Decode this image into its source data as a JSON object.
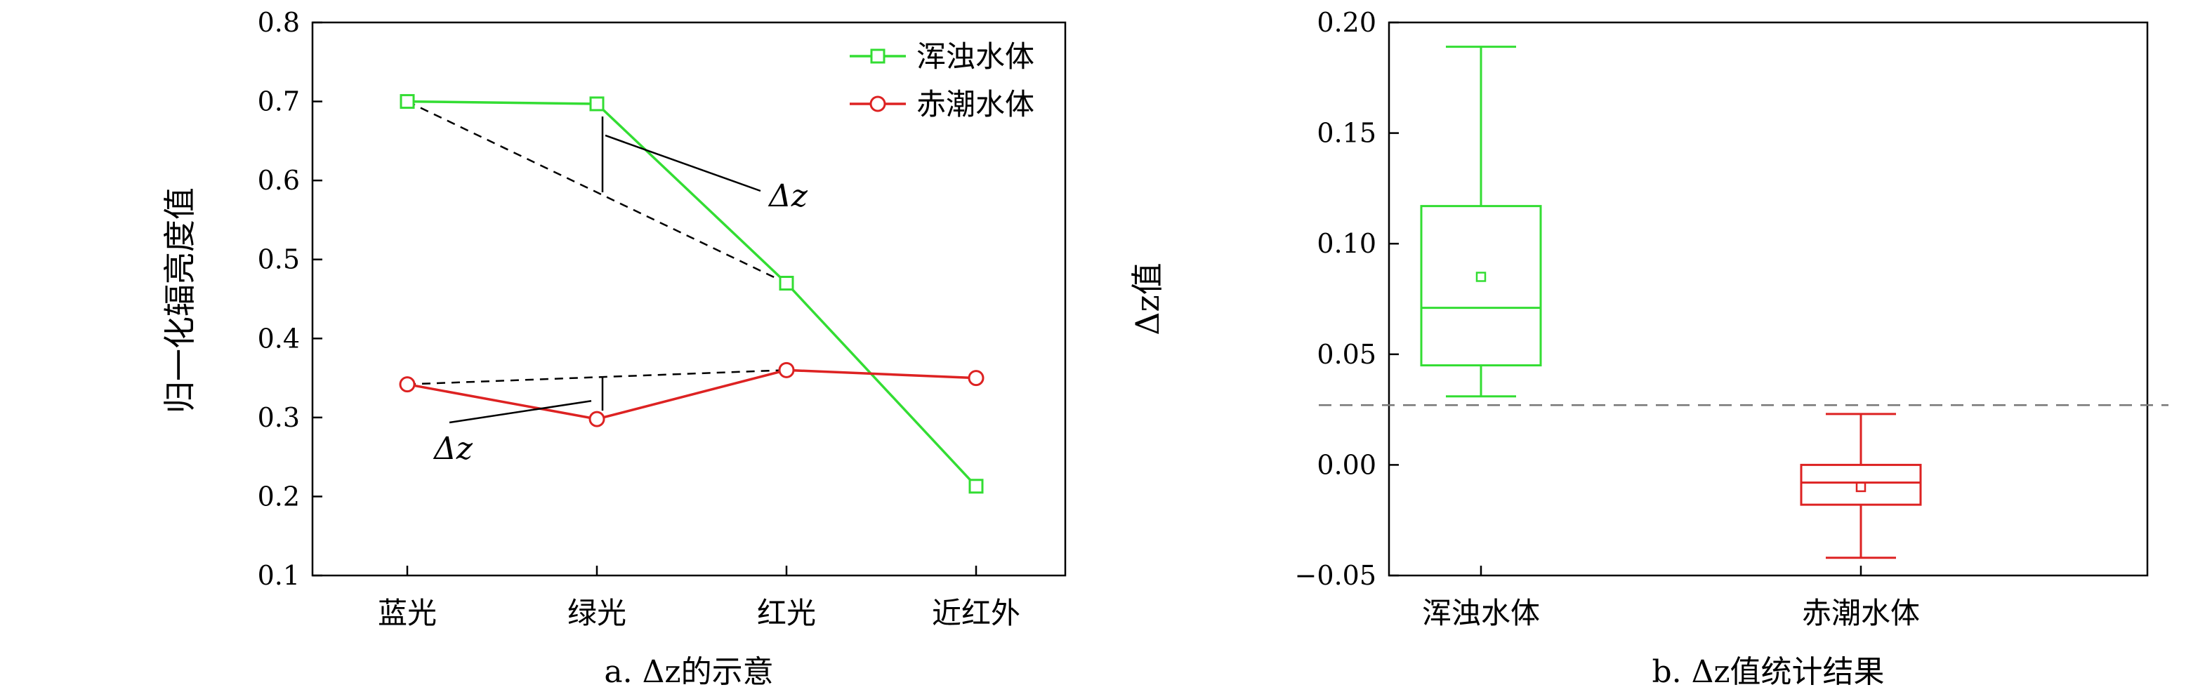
{
  "colors": {
    "turbid": "#33dd33",
    "redtide": "#dd2222",
    "threshold": "#777777",
    "helper": "#000000"
  },
  "chart_data": [
    {
      "type": "line",
      "caption": "a. Δz的示意",
      "ylabel": "归一化辐亮度值",
      "categories": [
        "蓝光",
        "绿光",
        "红光",
        "近红外"
      ],
      "ylim": [
        0.1,
        0.8
      ],
      "yticks": [
        "0.1",
        "0.2",
        "0.3",
        "0.4",
        "0.5",
        "0.6",
        "0.7",
        "0.8"
      ],
      "legend": {
        "position": "top-right"
      },
      "series": [
        {
          "name": "浑浊水体",
          "color": "#33dd33",
          "marker": "square",
          "values": [
            0.7,
            0.697,
            0.47,
            0.213
          ]
        },
        {
          "name": "赤潮水体",
          "color": "#dd2222",
          "marker": "circle",
          "values": [
            0.342,
            0.298,
            0.36,
            0.35
          ]
        }
      ],
      "annotations": [
        {
          "text": "Δz",
          "series": "浑浊水体",
          "category_index": 1,
          "baseline_from": 0,
          "baseline_to": 2
        },
        {
          "text": "Δz",
          "series": "赤潮水体",
          "category_index": 1,
          "baseline_from": 0,
          "baseline_to": 2
        }
      ]
    },
    {
      "type": "box",
      "caption": "b. Δz值统计结果",
      "ylabel": "Δz值",
      "categories": [
        "浑浊水体",
        "赤潮水体"
      ],
      "ylim": [
        -0.05,
        0.2
      ],
      "yticks": [
        "−0.05",
        "0.00",
        "0.05",
        "0.10",
        "0.15",
        "0.20"
      ],
      "threshold": 0.027,
      "boxes": [
        {
          "name": "浑浊水体",
          "color": "#33dd33",
          "min": 0.031,
          "q1": 0.045,
          "median": 0.071,
          "q3": 0.117,
          "max": 0.189,
          "mean": 0.085
        },
        {
          "name": "赤潮水体",
          "color": "#dd2222",
          "min": -0.042,
          "q1": -0.018,
          "median": -0.008,
          "q3": 0.0,
          "max": 0.023,
          "mean": -0.01
        }
      ]
    }
  ]
}
